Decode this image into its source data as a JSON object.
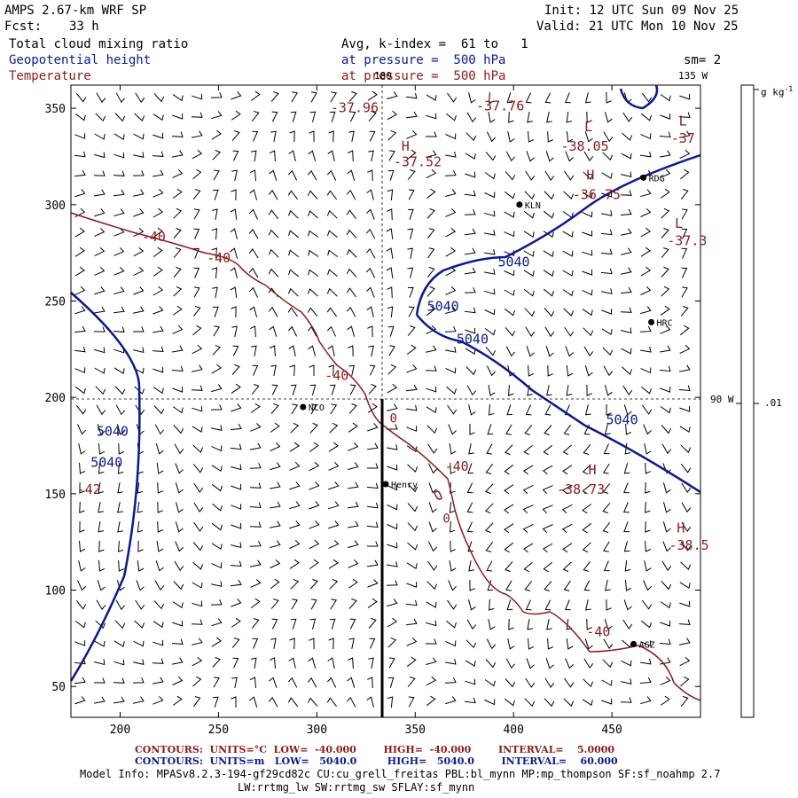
{
  "header": {
    "model": "AMPS 2.67-km WRF SP",
    "fcst_label": "Fcst:",
    "fcst_value": "33 h",
    "init": "Init: 12 UTC Sun 09 Nov 25",
    "valid": "Valid: 21 UTC Mon 10 Nov 25",
    "field1": "Total cloud mixing ratio",
    "field2": "Geopotential height",
    "field3": "Temperature",
    "avg_line": "Avg, k-index =  61 to   1",
    "pressure1": "at pressure =  500 hPa",
    "pressure2": "at pressure =  500 hPa",
    "sm": "sm= 2",
    "lon_180": "180",
    "lon_135": "135 W",
    "lon_90": "90 W"
  },
  "colorbar": {
    "unit": "g kg",
    "unit_sup": "-1",
    "tick_label": ".01"
  },
  "axes": {
    "x_ticks": [
      200,
      250,
      300,
      350,
      400,
      450
    ],
    "y_ticks": [
      50,
      100,
      150,
      200,
      250,
      300,
      350
    ],
    "xlim": [
      175,
      495
    ],
    "ylim": [
      34,
      362
    ]
  },
  "stations": [
    {
      "name": "KLN",
      "x": 403,
      "y": 300
    },
    {
      "name": "RDG",
      "x": 466,
      "y": 314
    },
    {
      "name": "HRC",
      "x": 470,
      "y": 239
    },
    {
      "name": "NCO",
      "x": 293,
      "y": 195
    },
    {
      "name": "Henry",
      "x": 335,
      "y": 155
    },
    {
      "name": "AGZ",
      "x": 461,
      "y": 72
    }
  ],
  "height_labels": [
    {
      "text": "5040",
      "x": 392,
      "y": 268
    },
    {
      "text": "5040",
      "x": 356,
      "y": 245
    },
    {
      "text": "5040",
      "x": 371,
      "y": 228
    },
    {
      "text": "5040",
      "x": 447,
      "y": 186
    },
    {
      "text": "5040",
      "x": 188,
      "y": 180
    },
    {
      "text": "5040",
      "x": 185,
      "y": 164
    }
  ],
  "temp_labels": [
    {
      "text": "-40",
      "x": 211,
      "y": 281
    },
    {
      "text": "-40",
      "x": 244,
      "y": 270
    },
    {
      "text": "-40",
      "x": 304,
      "y": 209
    },
    {
      "text": "-40",
      "x": 365,
      "y": 162
    },
    {
      "text": "-40",
      "x": 437,
      "y": 76
    },
    {
      "text": "-42",
      "x": 178,
      "y": 150
    },
    {
      "text": "-37.96",
      "x": 307,
      "y": 348
    },
    {
      "text": "-37.76",
      "x": 381,
      "y": 349
    },
    {
      "text": "-37.52",
      "x": 339,
      "y": 320
    },
    {
      "text": "-38.05",
      "x": 424,
      "y": 328
    },
    {
      "text": "-36.75",
      "x": 430,
      "y": 303
    },
    {
      "text": "-37.3",
      "x": 478,
      "y": 279
    },
    {
      "text": "-37",
      "x": 480,
      "y": 332
    },
    {
      "text": "-38.73",
      "x": 422,
      "y": 150
    },
    {
      "text": "-38.5",
      "x": 479,
      "y": 121
    }
  ],
  "extrema": [
    {
      "text": "H",
      "x": 343,
      "y": 328
    },
    {
      "text": "L",
      "x": 436,
      "y": 338
    },
    {
      "text": "L",
      "x": 484,
      "y": 341
    },
    {
      "text": "H",
      "x": 437,
      "y": 313
    },
    {
      "text": "L",
      "x": 482,
      "y": 288
    },
    {
      "text": "H",
      "x": 438,
      "y": 160
    },
    {
      "text": "H",
      "x": 483,
      "y": 130
    }
  ],
  "zero_labels": [
    {
      "text": "0",
      "x": 337,
      "y": 187
    },
    {
      "text": "0",
      "x": 364,
      "y": 135
    }
  ],
  "footer": {
    "contours1": "CONTOURS:  UNITS=°C  LOW=  -40.000        HIGH=  -40.000        INTERVAL=    5.0000",
    "contours2": "CONTOURS:  UNITS=m   LOW=   5040.0         HIGH=   5040.0        INTERVAL=    60.000",
    "model_info1": "Model Info: MPASv8.2.3-194-gf29cd82c CU:cu_grell_freitas PBL:bl_mynn MP:mp_thompson SF:sf_noahmp 2.7",
    "model_info2": "LW:rrtmg_lw SW:rrtmg_sw SFLAY:sf_mynn"
  },
  "colors": {
    "height_contour": "#0a1a8c",
    "temp_contour": "#8b1a1a",
    "barbs": "#000000"
  }
}
